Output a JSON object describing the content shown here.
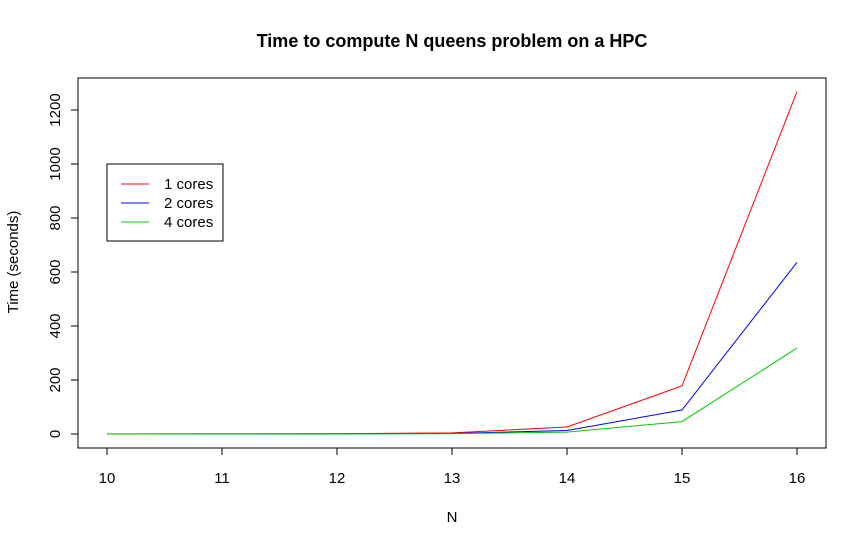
{
  "chart_data": {
    "type": "line",
    "title": "Time to compute N queens problem on a HPC",
    "xlabel": "N",
    "ylabel": "Time (seconds)",
    "x": [
      10,
      11,
      12,
      13,
      14,
      15,
      16
    ],
    "xlim": [
      10,
      16
    ],
    "ylim": [
      0,
      1270
    ],
    "xticks": [
      "10",
      "11",
      "12",
      "13",
      "14",
      "15",
      "16"
    ],
    "yticks": [
      "0",
      "200",
      "400",
      "600",
      "800",
      "1000",
      "1200"
    ],
    "legend_position": "top-left",
    "grid": false,
    "series": [
      {
        "name": "1 cores",
        "color": "#ff0000",
        "values": [
          0.2,
          0.5,
          1,
          4,
          26,
          178,
          1268
        ]
      },
      {
        "name": "2 cores",
        "color": "#0000ff",
        "values": [
          0.1,
          0.3,
          0.6,
          2,
          13,
          89,
          636
        ]
      },
      {
        "name": "4 cores",
        "color": "#00cc00",
        "values": [
          0.1,
          0.2,
          0.4,
          1,
          7,
          46,
          318
        ]
      }
    ]
  }
}
